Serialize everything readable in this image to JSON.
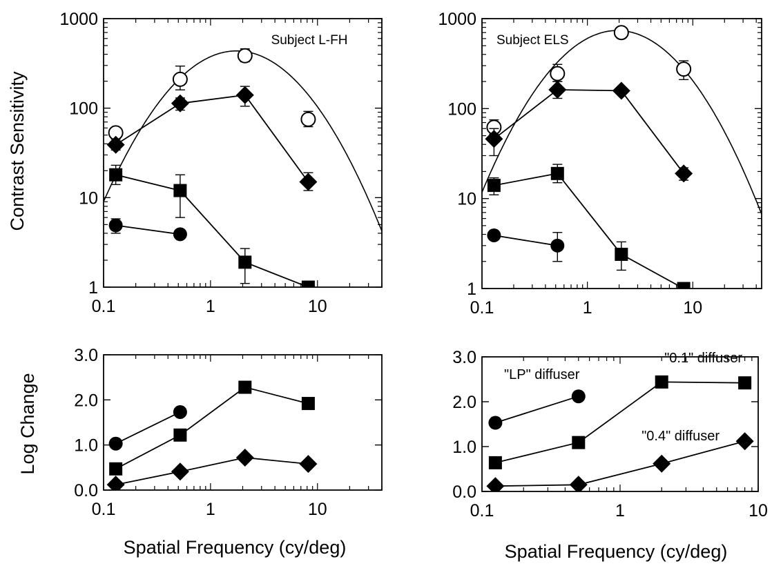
{
  "figure": {
    "top_ylabel": "Contrast Sensitivity",
    "bottom_ylabel": "Log Change",
    "xlabel": "Spatial Frequency (cy/deg)",
    "ink_color": "#000000",
    "background_color": "#ffffff"
  },
  "chart_data": [
    {
      "type": "line",
      "title": "Subject L-FH",
      "xlabel": "",
      "ylabel": "Contrast Sensitivity",
      "xscale": "log",
      "yscale": "log",
      "xlim": [
        0.1,
        40
      ],
      "ylim": [
        1,
        1000
      ],
      "xticks": [
        0.1,
        1,
        10
      ],
      "xtick_labels": [
        "0.1",
        "1",
        "10"
      ],
      "yticks": [
        1,
        10,
        100,
        1000
      ],
      "ytick_labels": [
        "1",
        "10",
        "100",
        "1000"
      ],
      "grid": false,
      "annotation_position": "top-right",
      "series": [
        {
          "marker": "open-circle",
          "connected": false,
          "x": [
            0.13,
            0.52,
            2.1,
            8.2
          ],
          "y": [
            53,
            210,
            385,
            75
          ],
          "err_low": [
            47,
            160,
            330,
            62
          ],
          "err_high": [
            60,
            295,
            460,
            92
          ]
        },
        {
          "marker": "diamond",
          "connected": true,
          "x": [
            0.13,
            0.52,
            2.1,
            8.2
          ],
          "y": [
            39,
            113,
            140,
            15
          ],
          "err_low": [
            34,
            95,
            105,
            12
          ],
          "err_high": [
            45,
            130,
            175,
            19
          ]
        },
        {
          "marker": "square",
          "connected": true,
          "x": [
            0.13,
            0.52,
            2.1,
            8.2
          ],
          "y": [
            18,
            12,
            1.9,
            1
          ],
          "err_low": [
            14,
            6,
            1.1,
            1
          ],
          "err_high": [
            23,
            18,
            2.7,
            1
          ]
        },
        {
          "marker": "circle",
          "connected": true,
          "x": [
            0.13,
            0.52
          ],
          "y": [
            4.9,
            3.9
          ],
          "err_low": [
            4.0,
            3.9
          ],
          "err_high": [
            5.8,
            3.9
          ]
        }
      ],
      "fit_curve": {
        "form": "log10(S) = a + b*log10(f) - c*log10(f)^2",
        "a": 2.575,
        "b": 0.53,
        "c": 1.09
      }
    },
    {
      "type": "line",
      "title": "Subject ELS",
      "xlabel": "",
      "ylabel": "",
      "xscale": "log",
      "yscale": "log",
      "xlim": [
        0.1,
        45
      ],
      "ylim": [
        1,
        1000
      ],
      "xticks": [
        0.1,
        1,
        10
      ],
      "xtick_labels": [
        "0.1",
        "1",
        "10"
      ],
      "yticks": [
        1,
        10,
        100,
        1000
      ],
      "ytick_labels": [
        "1",
        "10",
        "100",
        "1000"
      ],
      "grid": false,
      "annotation_position": "top-left",
      "series": [
        {
          "marker": "open-circle",
          "connected": false,
          "x": [
            0.13,
            0.52,
            2.1,
            8.2
          ],
          "y": [
            62,
            245,
            700,
            275
          ],
          "err_low": [
            52,
            200,
            700,
            210
          ],
          "err_high": [
            75,
            310,
            700,
            340
          ]
        },
        {
          "marker": "diamond",
          "connected": true,
          "x": [
            0.13,
            0.52,
            2.1,
            8.2
          ],
          "y": [
            46,
            162,
            158,
            19
          ],
          "err_low": [
            30,
            130,
            158,
            16
          ],
          "err_high": [
            60,
            200,
            158,
            22
          ]
        },
        {
          "marker": "square",
          "connected": true,
          "x": [
            0.13,
            0.52,
            2.1,
            8.2
          ],
          "y": [
            14,
            19,
            2.4,
            1
          ],
          "err_low": [
            11,
            15,
            1.6,
            1
          ],
          "err_high": [
            17,
            24,
            3.3,
            1
          ]
        },
        {
          "marker": "circle",
          "connected": true,
          "x": [
            0.13,
            0.52
          ],
          "y": [
            3.9,
            3.0
          ],
          "err_low": [
            3.9,
            2.0
          ],
          "err_high": [
            3.9,
            4.2
          ]
        }
      ],
      "fit_curve": {
        "form": "log10(S) = a + b*log10(f) - c*log10(f)^2",
        "a": 2.78,
        "b": 0.62,
        "c": 1.09
      }
    },
    {
      "type": "line",
      "title": "",
      "xlabel": "Spatial Frequency (cy/deg)",
      "ylabel": "Log Change",
      "xscale": "log",
      "yscale": "linear",
      "xlim": [
        0.1,
        40
      ],
      "ylim": [
        0,
        3
      ],
      "xticks": [
        0.1,
        1,
        10
      ],
      "xtick_labels": [
        "0.1",
        "1",
        "10"
      ],
      "yticks": [
        0,
        1,
        2,
        3
      ],
      "ytick_labels": [
        "0.0",
        "1.0",
        "2.0",
        "3.0"
      ],
      "grid": false,
      "series": [
        {
          "marker": "circle",
          "connected": true,
          "x": [
            0.13,
            0.52
          ],
          "y": [
            1.03,
            1.73
          ]
        },
        {
          "marker": "square",
          "connected": true,
          "x": [
            0.13,
            0.52,
            2.1,
            8.2
          ],
          "y": [
            0.47,
            1.22,
            2.28,
            1.92
          ]
        },
        {
          "marker": "diamond",
          "connected": true,
          "x": [
            0.13,
            0.52,
            2.1,
            8.2
          ],
          "y": [
            0.12,
            0.41,
            0.72,
            0.58
          ]
        }
      ]
    },
    {
      "type": "line",
      "title": "",
      "xlabel": "Spatial Frequency (cy/deg)",
      "ylabel": "",
      "xscale": "log",
      "yscale": "linear",
      "xlim": [
        0.1,
        10
      ],
      "ylim": [
        0,
        3
      ],
      "xticks": [
        0.1,
        1,
        10
      ],
      "xtick_labels": [
        "0.1",
        "1",
        "10"
      ],
      "yticks": [
        0,
        1,
        2,
        3
      ],
      "ytick_labels": [
        "0.0",
        "1.0",
        "2.0",
        "3.0"
      ],
      "grid": false,
      "series": [
        {
          "name": "\"LP\" diffuser",
          "marker": "circle",
          "connected": true,
          "x": [
            0.125,
            0.5
          ],
          "y": [
            1.53,
            2.12
          ]
        },
        {
          "name": "\"0.1\" diffuser",
          "marker": "square",
          "connected": true,
          "x": [
            0.125,
            0.5,
            2,
            8
          ],
          "y": [
            0.64,
            1.09,
            2.44,
            2.42
          ]
        },
        {
          "name": "\"0.4\" diffuser",
          "marker": "diamond",
          "connected": true,
          "x": [
            0.125,
            0.5,
            2,
            8
          ],
          "y": [
            0.12,
            0.15,
            0.62,
            1.12
          ]
        }
      ]
    }
  ]
}
